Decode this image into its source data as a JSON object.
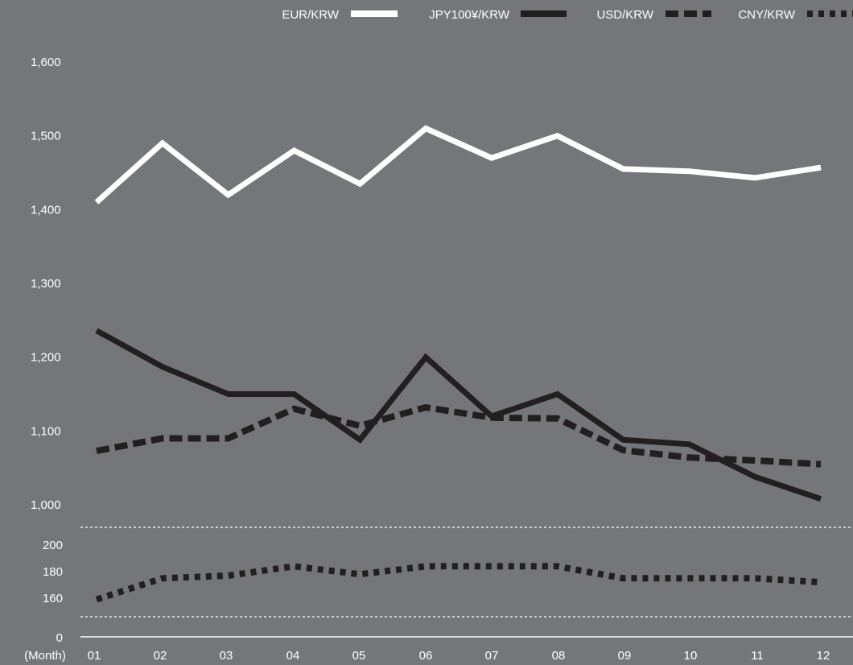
{
  "colors": {
    "background": "#757679",
    "EUR/KRW": "#ffffff",
    "JPY100¥/KRW": "#231f20",
    "USD/KRW": "#231f20",
    "CNY/KRW": "#231f20",
    "text": "#ffffff"
  },
  "chart_data": {
    "type": "line",
    "title": "",
    "xlabel": "(Month)",
    "ylabel": "",
    "legend_position": "top-right",
    "categories": [
      "01",
      "02",
      "03",
      "04",
      "05",
      "06",
      "07",
      "08",
      "09",
      "10",
      "11",
      "12"
    ],
    "y_axis_upper": {
      "range": [
        1000,
        1600
      ],
      "ticks": [
        "1,000",
        "1,100",
        "1,200",
        "1,300",
        "1,400",
        "1,500",
        "1,600"
      ],
      "tick_values": [
        1000,
        1100,
        1200,
        1300,
        1400,
        1500,
        1600
      ]
    },
    "y_axis_lower": {
      "range": [
        160,
        200
      ],
      "ticks": [
        "160",
        "180",
        "200"
      ],
      "tick_values": [
        160,
        180,
        200
      ],
      "zero_label": "0",
      "broken_axis": true
    },
    "series": [
      {
        "name": "EUR/KRW",
        "style": "solid",
        "axis": "upper",
        "values": [
          1410,
          1490,
          1420,
          1480,
          1435,
          1510,
          1470,
          1500,
          1455,
          1452,
          1443,
          1457
        ]
      },
      {
        "name": "JPY100¥/KRW",
        "style": "solid",
        "axis": "upper",
        "values": [
          1236,
          1187,
          1150,
          1150,
          1088,
          1200,
          1120,
          1150,
          1088,
          1082,
          1038,
          1008
        ]
      },
      {
        "name": "USD/KRW",
        "style": "dashed",
        "axis": "upper",
        "values": [
          1073,
          1090,
          1090,
          1130,
          1107,
          1132,
          1118,
          1117,
          1074,
          1064,
          1060,
          1055
        ]
      },
      {
        "name": "CNY/KRW",
        "style": "dotted",
        "axis": "lower",
        "values": [
          159,
          175,
          177,
          184,
          178,
          184,
          184,
          184,
          175,
          175,
          175,
          172
        ]
      }
    ]
  }
}
